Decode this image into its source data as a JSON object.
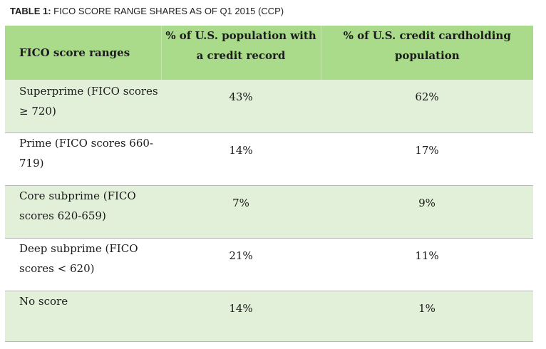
{
  "caption": {
    "label": "TABLE 1:",
    "text": " FICO SCORE RANGE SHARES AS OF Q1 2015 (CCP)"
  },
  "table": {
    "headers": [
      "FICO score ranges",
      "% of U.S. population with a credit record",
      "% of U.S. credit cardholding population"
    ],
    "rows": [
      [
        "Superprime (FICO scores ≥ 720)",
        "43%",
        "62%"
      ],
      [
        "Prime (FICO scores 660-719)",
        "14%",
        "17%"
      ],
      [
        "Core subprime (FICO scores 620-659)",
        "7%",
        "9%"
      ],
      [
        "Deep subprime (FICO scores < 620)",
        "21%",
        "11%"
      ],
      [
        "No score",
        "14%",
        "1%"
      ]
    ]
  },
  "colors": {
    "header_bg": "#a9db8a",
    "shaded_row_bg": "#e2efd9",
    "plain_row_bg": "#ffffff"
  }
}
